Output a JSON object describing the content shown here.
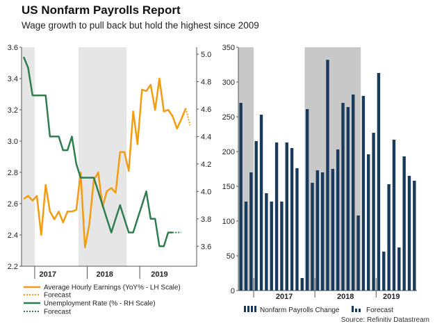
{
  "header": {
    "title": "US Nonfarm Payrolls Report",
    "subtitle": "Wage growth to pull back but hold the highest since 2009"
  },
  "source": "Source: Refinitiv Datastream",
  "colors": {
    "earnings": "#f39c12",
    "unemployment": "#2e7d4f",
    "payrolls": "#1a3a5c",
    "shade": "#e6e6e6",
    "shade_dark": "#c8c8c8"
  },
  "chart_data": [
    {
      "type": "line",
      "title": "",
      "x_labels": [
        "2017",
        "2018",
        "2019"
      ],
      "shaded_ranges": [
        [
          0,
          2
        ],
        [
          13,
          23
        ]
      ],
      "left_axis": {
        "label": "Average Hourly Earnings (YoY% - LH Scale)",
        "ylim": [
          2.2,
          3.6
        ],
        "ticks": [
          "2.2",
          "2.4",
          "2.6",
          "2.8",
          "3.0",
          "3.2",
          "3.4",
          "3.6"
        ]
      },
      "right_axis": {
        "label": "Unemployment Rate (% - RH Scale)",
        "ylim": [
          3.5,
          5.0
        ],
        "ticks": [
          "3.6",
          "3.8",
          "4.0",
          "4.2",
          "4.4",
          "4.6",
          "4.8",
          "5.0"
        ]
      },
      "series": [
        {
          "name": "Average Hourly Earnings (YoY% - LH Scale)",
          "axis": "left",
          "start": 0,
          "values": [
            2.63,
            2.65,
            2.62,
            2.65,
            2.4,
            2.72,
            2.55,
            2.5,
            2.55,
            2.48,
            2.55,
            2.55,
            2.56,
            2.8,
            2.32,
            2.47,
            2.75,
            2.8,
            2.58,
            2.68,
            2.7,
            2.67,
            2.93,
            2.93,
            2.81,
            3.19,
            2.98,
            3.33,
            3.32,
            3.36,
            3.2,
            3.4,
            3.19,
            3.2,
            3.16,
            3.08,
            3.14,
            3.21
          ]
        },
        {
          "name": "Forecast",
          "axis": "left",
          "start": 37,
          "dashed": true,
          "values": [
            3.21,
            3.1
          ]
        },
        {
          "name": "Unemployment Rate (% - RH Scale)",
          "axis": "right",
          "start": 0,
          "values": [
            4.98,
            4.9,
            4.7,
            4.7,
            4.7,
            4.7,
            4.4,
            4.4,
            4.4,
            4.3,
            4.3,
            4.4,
            4.2,
            4.1,
            4.1,
            4.1,
            4.1,
            4.0,
            3.9,
            3.8,
            3.7,
            3.8,
            3.9,
            3.8,
            3.7,
            3.7,
            3.8,
            3.9,
            4.0,
            3.8,
            3.8,
            3.6,
            3.6,
            3.7,
            3.7
          ]
        },
        {
          "name": "Forecast",
          "axis": "right",
          "start": 34,
          "dashed": true,
          "values": [
            3.7,
            3.7,
            3.7
          ]
        }
      ]
    },
    {
      "type": "bar",
      "title": "",
      "x_labels": [
        "2017",
        "2018",
        "2019"
      ],
      "shaded_ranges": [
        [
          0,
          2
        ],
        [
          13,
          23
        ]
      ],
      "ylim": [
        0,
        350
      ],
      "ticks": [
        "0",
        "50",
        "100",
        "150",
        "200",
        "250",
        "300",
        "350"
      ],
      "series": [
        {
          "name": "Nonfarm Payrolls Change",
          "values": [
            270,
            128,
            170,
            215,
            253,
            140,
            128,
            213,
            128,
            213,
            205,
            176,
            18,
            261,
            155,
            173,
            170,
            332,
            175,
            203,
            270,
            264,
            282,
            108,
            280,
            196,
            227,
            313,
            56,
            153,
            217,
            62,
            193
          ]
        },
        {
          "name": "Forecast",
          "dashed": true,
          "values": [
            165,
            158
          ]
        }
      ]
    }
  ],
  "legend_left": [
    {
      "label": "Average Hourly Earnings (YoY% - LH Scale)"
    },
    {
      "label": "Forecast"
    },
    {
      "label": "Unemployment Rate (% - RH Scale)"
    },
    {
      "label": "Forecast"
    }
  ],
  "legend_right": [
    {
      "label": "Nonfarm Payrolls Change"
    },
    {
      "label": "Forecast"
    }
  ]
}
